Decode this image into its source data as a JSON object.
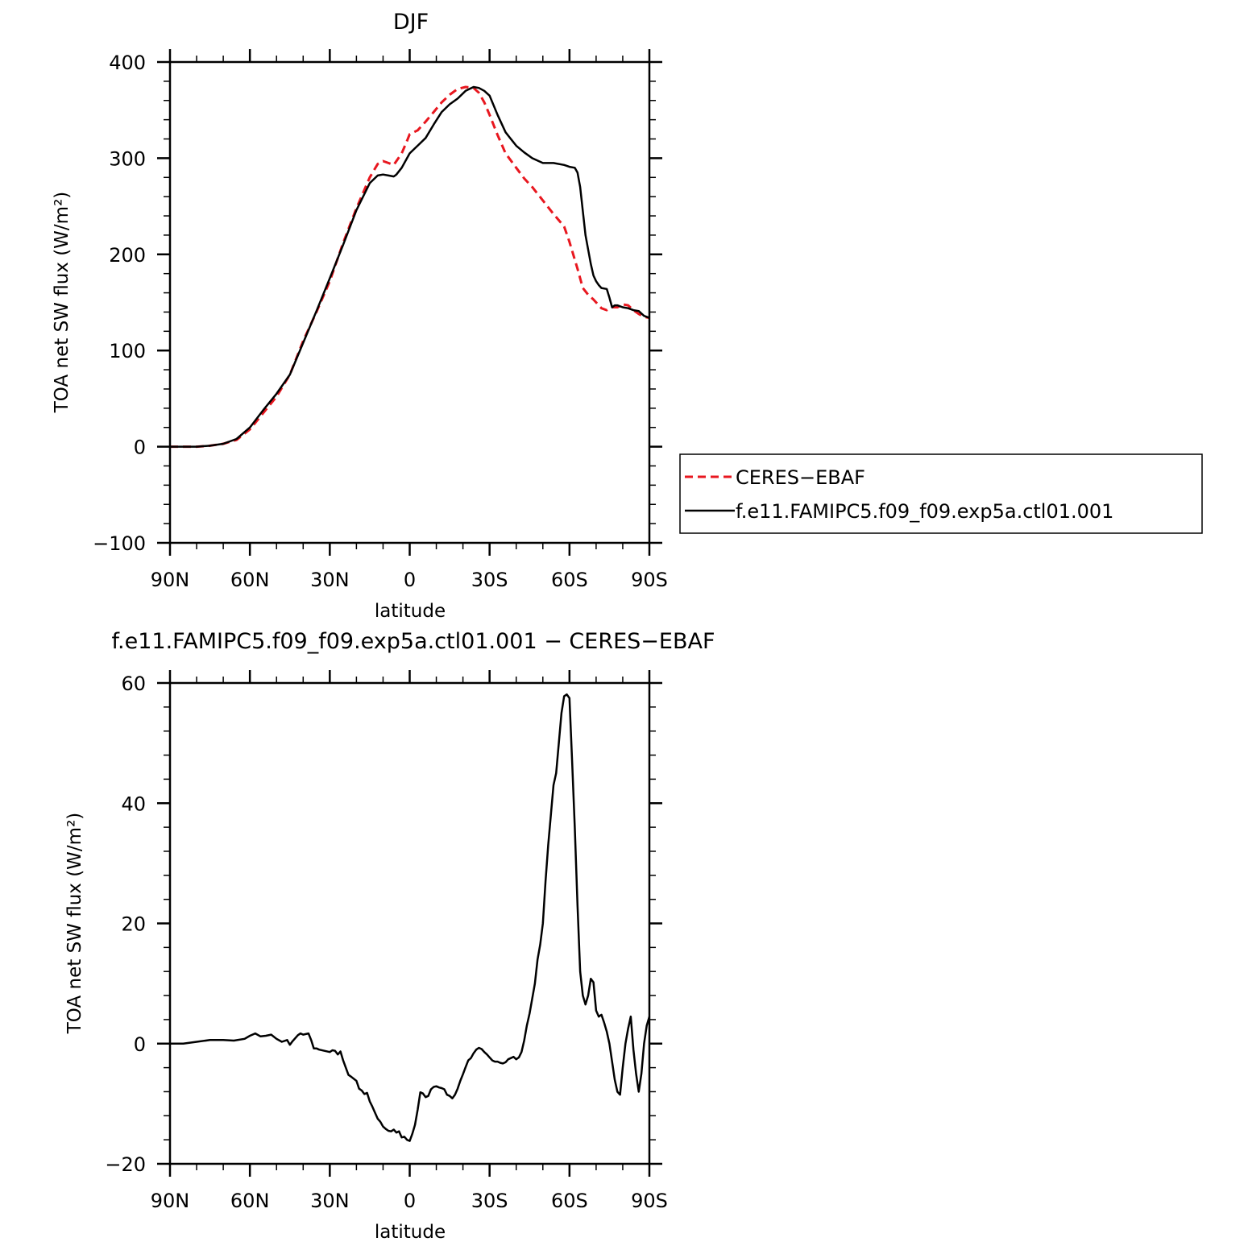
{
  "chart_data": [
    {
      "type": "line",
      "title": "DJF",
      "xlabel": "latitude",
      "ylabel": "TOA net SW flux (W/m²)",
      "xlim": [
        90,
        -90
      ],
      "ylim": [
        -100,
        400
      ],
      "x_ticks": [
        {
          "value": 90,
          "label": "90N"
        },
        {
          "value": 60,
          "label": "60N"
        },
        {
          "value": 30,
          "label": "30N"
        },
        {
          "value": 0,
          "label": "0"
        },
        {
          "value": -30,
          "label": "30S"
        },
        {
          "value": -60,
          "label": "60S"
        },
        {
          "value": -90,
          "label": "90S"
        }
      ],
      "y_ticks": [
        {
          "value": -100,
          "label": "−100"
        },
        {
          "value": 0,
          "label": "0"
        },
        {
          "value": 100,
          "label": "100"
        },
        {
          "value": 200,
          "label": "200"
        },
        {
          "value": 300,
          "label": "300"
        },
        {
          "value": 400,
          "label": "400"
        }
      ],
      "grid": false,
      "legend": {
        "position": "right",
        "entries": [
          {
            "label": "CERES−EBAF",
            "color": "#e8171f",
            "dash": "dashed"
          },
          {
            "label": "f.e11.FAMIPC5.f09_f09.exp5a.ctl01.001",
            "color": "#000000",
            "dash": "solid"
          }
        ]
      },
      "series": [
        {
          "name": "CERES−EBAF",
          "color": "#e8171f",
          "dash": "dashed",
          "x": [
            90,
            85,
            80,
            75,
            70,
            65,
            60,
            55,
            50,
            45,
            40,
            35,
            30,
            25,
            20,
            15,
            12,
            10,
            8,
            6,
            5,
            3,
            1,
            0,
            -3,
            -6,
            -9,
            -12,
            -15,
            -18,
            -21,
            -24,
            -26,
            -28,
            -30,
            -33,
            -36,
            -40,
            -43,
            -46,
            -50,
            -54,
            -58,
            -60,
            -63,
            -65,
            -67,
            -69,
            -70,
            -72,
            -74,
            -76,
            -78,
            -80,
            -82,
            -84,
            -86,
            -88,
            -90
          ],
          "y": [
            0,
            0,
            0,
            1,
            3,
            7,
            18,
            35,
            52,
            75,
            110,
            140,
            172,
            212,
            248,
            280,
            294,
            297,
            295,
            293,
            297,
            305,
            318,
            325,
            329,
            338,
            348,
            358,
            366,
            372,
            374,
            373,
            368,
            358,
            345,
            324,
            305,
            290,
            279,
            270,
            256,
            242,
            229,
            213,
            185,
            165,
            158,
            153,
            150,
            144,
            142,
            145,
            145,
            148,
            147,
            142,
            138,
            135,
            134
          ]
        },
        {
          "name": "f.e11.FAMIPC5.f09_f09.exp5a.ctl01.001",
          "color": "#000000",
          "dash": "solid",
          "x": [
            90,
            85,
            80,
            75,
            70,
            65,
            60,
            55,
            50,
            45,
            40,
            35,
            30,
            25,
            20,
            15,
            12,
            10,
            8,
            6,
            5,
            3,
            1,
            0,
            -3,
            -6,
            -9,
            -12,
            -15,
            -18,
            -21,
            -24,
            -26,
            -28,
            -30,
            -33,
            -36,
            -40,
            -43,
            -46,
            -50,
            -54,
            -58,
            -60,
            -62,
            -63,
            -64,
            -65,
            -66,
            -67,
            -68,
            -69,
            -70,
            -71,
            -72,
            -74,
            -75,
            -76,
            -77,
            -78,
            -80,
            -82,
            -84,
            -86,
            -88,
            -90
          ],
          "y": [
            0,
            0,
            0,
            1,
            3,
            8,
            20,
            38,
            55,
            75,
            108,
            141,
            175,
            210,
            246,
            274,
            282,
            283,
            282,
            281,
            283,
            290,
            300,
            305,
            313,
            321,
            335,
            348,
            356,
            362,
            370,
            374,
            373,
            370,
            365,
            345,
            327,
            313,
            306,
            300,
            295,
            295,
            293,
            291,
            290,
            285,
            270,
            245,
            220,
            205,
            190,
            178,
            172,
            168,
            165,
            164,
            155,
            145,
            147,
            147,
            145,
            144,
            142,
            141,
            136,
            134
          ]
        }
      ]
    },
    {
      "type": "line",
      "title": "f.e11.FAMIPC5.f09_f09.exp5a.ctl01.001 − CERES−EBAF",
      "xlabel": "latitude",
      "ylabel": "TOA net SW flux (W/m²)",
      "xlim": [
        90,
        -90
      ],
      "ylim": [
        -20,
        60
      ],
      "x_ticks": [
        {
          "value": 90,
          "label": "90N"
        },
        {
          "value": 60,
          "label": "60N"
        },
        {
          "value": 30,
          "label": "30N"
        },
        {
          "value": 0,
          "label": "0"
        },
        {
          "value": -30,
          "label": "30S"
        },
        {
          "value": -60,
          "label": "60S"
        },
        {
          "value": -90,
          "label": "90S"
        }
      ],
      "y_ticks": [
        {
          "value": -20,
          "label": "−20"
        },
        {
          "value": 0,
          "label": "0"
        },
        {
          "value": 20,
          "label": "20"
        },
        {
          "value": 40,
          "label": "40"
        },
        {
          "value": 60,
          "label": "60"
        }
      ],
      "grid": false,
      "series": [
        {
          "color": "#000000",
          "dash": "solid",
          "x": [
            90,
            85,
            80,
            75,
            70,
            66,
            62,
            60,
            58,
            56,
            54,
            52,
            50,
            48,
            46,
            45,
            44,
            42,
            41,
            40,
            38,
            37,
            36,
            35,
            34,
            32,
            30,
            29,
            28,
            27,
            26,
            25,
            24,
            23,
            22,
            20,
            19,
            18,
            17,
            16,
            15,
            14,
            13,
            12,
            11,
            10,
            9,
            8,
            7,
            6,
            5,
            4,
            3,
            2,
            1,
            0,
            -1,
            -2,
            -3,
            -4,
            -5,
            -6,
            -7,
            -8,
            -9,
            -10,
            -11,
            -12,
            -13,
            -14,
            -15,
            -16,
            -17,
            -18,
            -19,
            -20,
            -21,
            -22,
            -23,
            -24,
            -25,
            -26,
            -27,
            -28,
            -29,
            -30,
            -31,
            -32,
            -33,
            -34,
            -35,
            -36,
            -37,
            -38,
            -39,
            -40,
            -41,
            -42,
            -43,
            -44,
            -45,
            -46,
            -47,
            -48,
            -49,
            -50,
            -51,
            -52,
            -53,
            -54,
            -55,
            -56,
            -57,
            -58,
            -59,
            -60,
            -61,
            -62,
            -63,
            -64,
            -65,
            -66,
            -67,
            -68,
            -69,
            -70,
            -71,
            -72,
            -73,
            -74,
            -75,
            -76,
            -77,
            -78,
            -79,
            -80,
            -81,
            -82,
            -83,
            -84,
            -85,
            -86,
            -87,
            -88,
            -89,
            -90
          ],
          "y": [
            0,
            0,
            0.3,
            0.6,
            0.6,
            0.5,
            0.8,
            1.3,
            1.7,
            1.2,
            1.3,
            1.5,
            0.8,
            0.3,
            0.6,
            -0.2,
            0.4,
            1.4,
            1.7,
            1.5,
            1.7,
            0.6,
            -0.8,
            -0.8,
            -1.0,
            -1.2,
            -1.4,
            -1.1,
            -1.2,
            -1.8,
            -1.3,
            -2.8,
            -4.0,
            -5.2,
            -5.5,
            -6.2,
            -7.5,
            -7.8,
            -8.4,
            -8.2,
            -9.6,
            -10.5,
            -11.5,
            -12.5,
            -13.0,
            -13.8,
            -14.2,
            -14.5,
            -14.6,
            -14.3,
            -14.8,
            -14.6,
            -15.6,
            -15.5,
            -16.0,
            -16.2,
            -15.0,
            -13.5,
            -11.0,
            -8.1,
            -8.3,
            -8.9,
            -8.7,
            -7.6,
            -7.2,
            -7.1,
            -7.3,
            -7.4,
            -7.6,
            -8.5,
            -8.7,
            -9.1,
            -8.5,
            -7.5,
            -6.2,
            -5.1,
            -3.9,
            -2.8,
            -2.4,
            -1.6,
            -1.0,
            -0.7,
            -0.9,
            -1.4,
            -1.8,
            -2.3,
            -2.8,
            -3.0,
            -3.0,
            -3.2,
            -3.3,
            -3.1,
            -2.6,
            -2.4,
            -2.2,
            -2.6,
            -2.3,
            -1.4,
            0.5,
            3.0,
            5.0,
            7.5,
            10.0,
            14.0,
            16.5,
            20.0,
            27.0,
            33.0,
            38.0,
            43.0,
            45.0,
            50.0,
            55.0,
            57.8,
            58.1,
            57.5,
            47.0,
            36.0,
            23.0,
            12.0,
            8.0,
            6.5,
            8.0,
            10.8,
            10.2,
            5.5,
            4.5,
            4.8,
            3.5,
            2.0,
            0.0,
            -3.0,
            -6.0,
            -8.0,
            -8.5,
            -4.0,
            0.0,
            2.5,
            4.5,
            -1.0,
            -5.0,
            -8.0,
            -5.0,
            0.0,
            3.0,
            4.5
          ]
        }
      ]
    }
  ]
}
